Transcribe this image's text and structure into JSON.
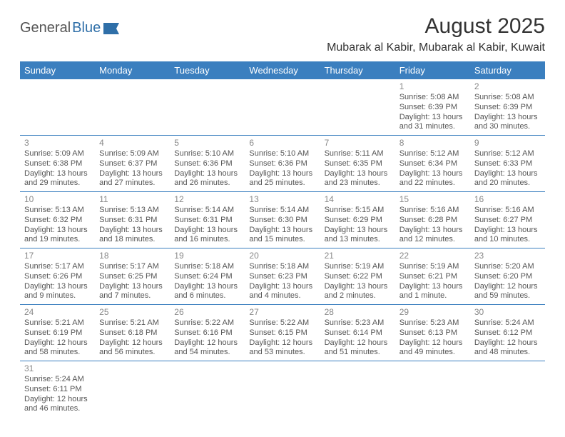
{
  "logo": {
    "text1": "General",
    "text2": "Blue"
  },
  "title": "August 2025",
  "location": "Mubarak al Kabir, Mubarak al Kabir, Kuwait",
  "colors": {
    "header_bg": "#3b7fbf",
    "header_fg": "#ffffff",
    "border": "#3b7fbf"
  },
  "day_headers": [
    "Sunday",
    "Monday",
    "Tuesday",
    "Wednesday",
    "Thursday",
    "Friday",
    "Saturday"
  ],
  "weeks": [
    [
      null,
      null,
      null,
      null,
      null,
      {
        "n": "1",
        "sr": "Sunrise: 5:08 AM",
        "ss": "Sunset: 6:39 PM",
        "dl": "Daylight: 13 hours and 31 minutes."
      },
      {
        "n": "2",
        "sr": "Sunrise: 5:08 AM",
        "ss": "Sunset: 6:39 PM",
        "dl": "Daylight: 13 hours and 30 minutes."
      }
    ],
    [
      {
        "n": "3",
        "sr": "Sunrise: 5:09 AM",
        "ss": "Sunset: 6:38 PM",
        "dl": "Daylight: 13 hours and 29 minutes."
      },
      {
        "n": "4",
        "sr": "Sunrise: 5:09 AM",
        "ss": "Sunset: 6:37 PM",
        "dl": "Daylight: 13 hours and 27 minutes."
      },
      {
        "n": "5",
        "sr": "Sunrise: 5:10 AM",
        "ss": "Sunset: 6:36 PM",
        "dl": "Daylight: 13 hours and 26 minutes."
      },
      {
        "n": "6",
        "sr": "Sunrise: 5:10 AM",
        "ss": "Sunset: 6:36 PM",
        "dl": "Daylight: 13 hours and 25 minutes."
      },
      {
        "n": "7",
        "sr": "Sunrise: 5:11 AM",
        "ss": "Sunset: 6:35 PM",
        "dl": "Daylight: 13 hours and 23 minutes."
      },
      {
        "n": "8",
        "sr": "Sunrise: 5:12 AM",
        "ss": "Sunset: 6:34 PM",
        "dl": "Daylight: 13 hours and 22 minutes."
      },
      {
        "n": "9",
        "sr": "Sunrise: 5:12 AM",
        "ss": "Sunset: 6:33 PM",
        "dl": "Daylight: 13 hours and 20 minutes."
      }
    ],
    [
      {
        "n": "10",
        "sr": "Sunrise: 5:13 AM",
        "ss": "Sunset: 6:32 PM",
        "dl": "Daylight: 13 hours and 19 minutes."
      },
      {
        "n": "11",
        "sr": "Sunrise: 5:13 AM",
        "ss": "Sunset: 6:31 PM",
        "dl": "Daylight: 13 hours and 18 minutes."
      },
      {
        "n": "12",
        "sr": "Sunrise: 5:14 AM",
        "ss": "Sunset: 6:31 PM",
        "dl": "Daylight: 13 hours and 16 minutes."
      },
      {
        "n": "13",
        "sr": "Sunrise: 5:14 AM",
        "ss": "Sunset: 6:30 PM",
        "dl": "Daylight: 13 hours and 15 minutes."
      },
      {
        "n": "14",
        "sr": "Sunrise: 5:15 AM",
        "ss": "Sunset: 6:29 PM",
        "dl": "Daylight: 13 hours and 13 minutes."
      },
      {
        "n": "15",
        "sr": "Sunrise: 5:16 AM",
        "ss": "Sunset: 6:28 PM",
        "dl": "Daylight: 13 hours and 12 minutes."
      },
      {
        "n": "16",
        "sr": "Sunrise: 5:16 AM",
        "ss": "Sunset: 6:27 PM",
        "dl": "Daylight: 13 hours and 10 minutes."
      }
    ],
    [
      {
        "n": "17",
        "sr": "Sunrise: 5:17 AM",
        "ss": "Sunset: 6:26 PM",
        "dl": "Daylight: 13 hours and 9 minutes."
      },
      {
        "n": "18",
        "sr": "Sunrise: 5:17 AM",
        "ss": "Sunset: 6:25 PM",
        "dl": "Daylight: 13 hours and 7 minutes."
      },
      {
        "n": "19",
        "sr": "Sunrise: 5:18 AM",
        "ss": "Sunset: 6:24 PM",
        "dl": "Daylight: 13 hours and 6 minutes."
      },
      {
        "n": "20",
        "sr": "Sunrise: 5:18 AM",
        "ss": "Sunset: 6:23 PM",
        "dl": "Daylight: 13 hours and 4 minutes."
      },
      {
        "n": "21",
        "sr": "Sunrise: 5:19 AM",
        "ss": "Sunset: 6:22 PM",
        "dl": "Daylight: 13 hours and 2 minutes."
      },
      {
        "n": "22",
        "sr": "Sunrise: 5:19 AM",
        "ss": "Sunset: 6:21 PM",
        "dl": "Daylight: 13 hours and 1 minute."
      },
      {
        "n": "23",
        "sr": "Sunrise: 5:20 AM",
        "ss": "Sunset: 6:20 PM",
        "dl": "Daylight: 12 hours and 59 minutes."
      }
    ],
    [
      {
        "n": "24",
        "sr": "Sunrise: 5:21 AM",
        "ss": "Sunset: 6:19 PM",
        "dl": "Daylight: 12 hours and 58 minutes."
      },
      {
        "n": "25",
        "sr": "Sunrise: 5:21 AM",
        "ss": "Sunset: 6:18 PM",
        "dl": "Daylight: 12 hours and 56 minutes."
      },
      {
        "n": "26",
        "sr": "Sunrise: 5:22 AM",
        "ss": "Sunset: 6:16 PM",
        "dl": "Daylight: 12 hours and 54 minutes."
      },
      {
        "n": "27",
        "sr": "Sunrise: 5:22 AM",
        "ss": "Sunset: 6:15 PM",
        "dl": "Daylight: 12 hours and 53 minutes."
      },
      {
        "n": "28",
        "sr": "Sunrise: 5:23 AM",
        "ss": "Sunset: 6:14 PM",
        "dl": "Daylight: 12 hours and 51 minutes."
      },
      {
        "n": "29",
        "sr": "Sunrise: 5:23 AM",
        "ss": "Sunset: 6:13 PM",
        "dl": "Daylight: 12 hours and 49 minutes."
      },
      {
        "n": "30",
        "sr": "Sunrise: 5:24 AM",
        "ss": "Sunset: 6:12 PM",
        "dl": "Daylight: 12 hours and 48 minutes."
      }
    ],
    [
      {
        "n": "31",
        "sr": "Sunrise: 5:24 AM",
        "ss": "Sunset: 6:11 PM",
        "dl": "Daylight: 12 hours and 46 minutes."
      },
      null,
      null,
      null,
      null,
      null,
      null
    ]
  ]
}
